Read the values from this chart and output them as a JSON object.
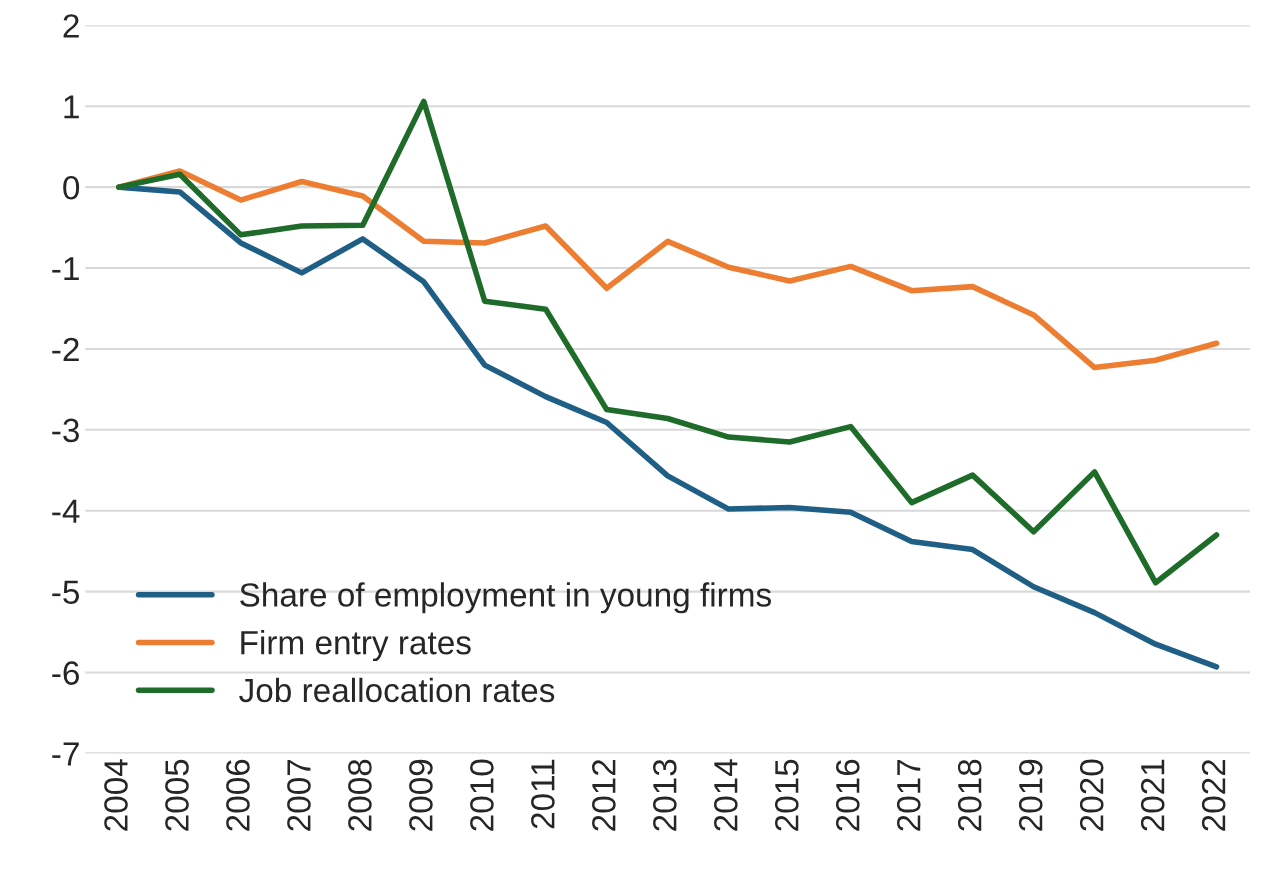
{
  "chart_data": {
    "type": "line",
    "categories": [
      "2004",
      "2005",
      "2006",
      "2007",
      "2008",
      "2009",
      "2010",
      "2011",
      "2012",
      "2013",
      "2014",
      "2015",
      "2016",
      "2017",
      "2018",
      "2019",
      "2020",
      "2021",
      "2022"
    ],
    "series": [
      {
        "name": "Share of employment in young firms",
        "color": "#1f5f85",
        "values": [
          0,
          -0.06,
          -0.69,
          -1.06,
          -0.64,
          -1.17,
          -2.2,
          -2.59,
          -2.91,
          -3.57,
          -3.98,
          -3.96,
          -4.02,
          -4.38,
          -4.48,
          -4.94,
          -5.26,
          -5.65,
          -5.93
        ]
      },
      {
        "name": "Firm entry rates",
        "color": "#ed7d31",
        "values": [
          0,
          0.2,
          -0.16,
          0.07,
          -0.11,
          -0.67,
          -0.69,
          -0.48,
          -1.25,
          -0.67,
          -0.99,
          -1.16,
          -0.98,
          -1.28,
          -1.23,
          -1.58,
          -2.23,
          -2.14,
          -1.93
        ]
      },
      {
        "name": "Job reallocation rates",
        "color": "#1e6b2a",
        "values": [
          0,
          0.16,
          -0.59,
          -0.48,
          -0.47,
          1.06,
          -1.41,
          -1.51,
          -2.75,
          -2.86,
          -3.09,
          -3.15,
          -2.96,
          -3.9,
          -3.56,
          -4.26,
          -3.52,
          -4.89,
          -4.3
        ]
      }
    ],
    "ylim": [
      -7,
      2
    ],
    "yticks": [
      -7,
      -6,
      -5,
      -4,
      -3,
      -2,
      -1,
      0,
      1,
      2
    ],
    "grid": "y",
    "legend": "bottom left",
    "marker": "none",
    "line_style": "solid"
  }
}
